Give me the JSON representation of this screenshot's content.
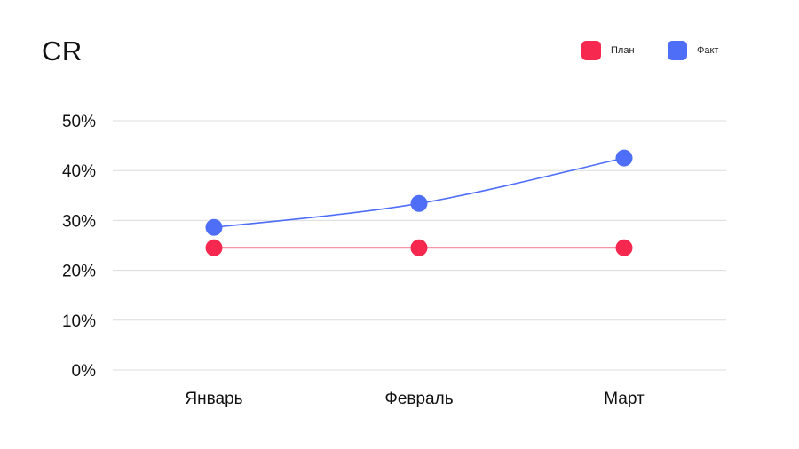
{
  "chart_data": {
    "type": "line",
    "title": "CR",
    "categories": [
      "Январь",
      "Февраль",
      "Март"
    ],
    "yticks": [
      "0%",
      "10%",
      "20%",
      "30%",
      "40%",
      "50%"
    ],
    "ylim": [
      0,
      50
    ],
    "grid": true,
    "legend_position": "top-right",
    "series": [
      {
        "name": "План",
        "color": "#f7284f",
        "values": [
          24.5,
          24.5,
          24.5
        ]
      },
      {
        "name": "Факт",
        "color": "#4f6ef7",
        "values": [
          28.6,
          33.4,
          42.5
        ]
      }
    ]
  }
}
